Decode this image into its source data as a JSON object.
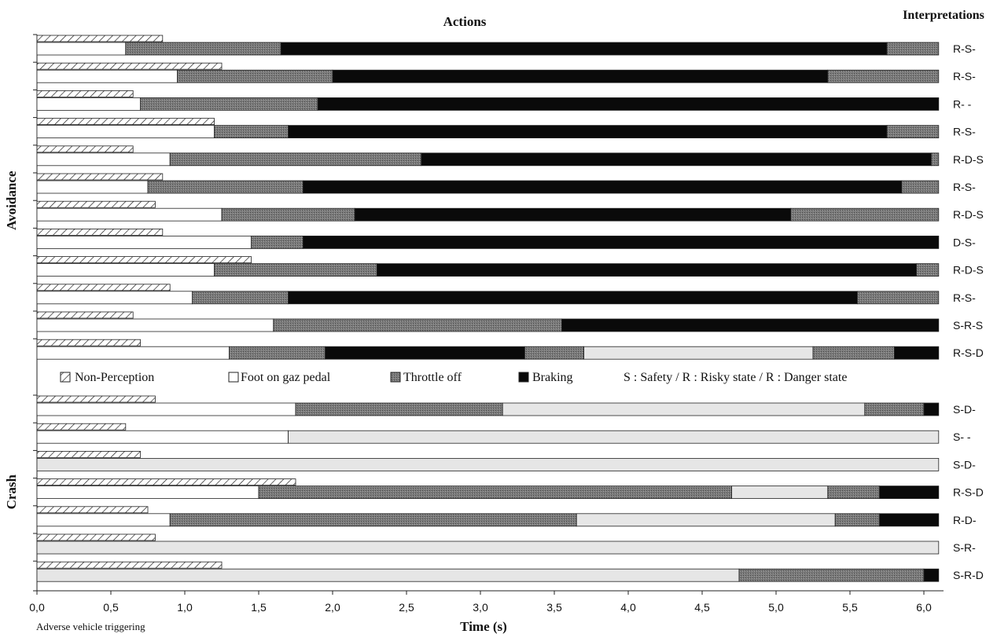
{
  "chart_data": {
    "type": "bar",
    "subtype": "stacked-horizontal-timeline",
    "title": "Actions",
    "right_header": "Interpretations",
    "xlabel": "Time (s)",
    "x_origin_label": "Adverse vehicle triggering",
    "xlim": [
      0,
      6.1
    ],
    "x_ticks": [
      "0,0",
      "0,5",
      "1,0",
      "1,5",
      "2,0",
      "2,5",
      "3,0",
      "3,5",
      "4,0",
      "4,5",
      "5,0",
      "5,5",
      "6,0"
    ],
    "grid": false,
    "legend_placement": "between groups",
    "legend": [
      {
        "key": "nonperception",
        "label": "Non-Perception"
      },
      {
        "key": "gaz",
        "label": "Foot on gaz pedal"
      },
      {
        "key": "throttle",
        "label": "Throttle off"
      },
      {
        "key": "braking",
        "label": "Braking"
      },
      {
        "key": "states",
        "label": "S : Safety / R : Risky state / R : Danger state"
      }
    ],
    "colors": {
      "nonperception": "#ffffff",
      "gaz": "#ffffff",
      "throttle": "#7a7a7a",
      "braking": "#0a0a0a",
      "release": "#e6e6e6",
      "outline": "#222222"
    },
    "groups": [
      {
        "label": "Avoidance",
        "rows": [
          {
            "interp": "R-S-",
            "nonperception": 0.85,
            "segments": [
              [
                "gaz",
                0,
                0.6
              ],
              [
                "throttle",
                0.6,
                1.65
              ],
              [
                "braking",
                1.65,
                5.75
              ],
              [
                "throttle",
                5.75,
                6.1
              ]
            ]
          },
          {
            "interp": "R-S-",
            "nonperception": 1.25,
            "segments": [
              [
                "gaz",
                0,
                0.95
              ],
              [
                "throttle",
                0.95,
                2.0
              ],
              [
                "braking",
                2.0,
                5.35
              ],
              [
                "throttle",
                5.35,
                6.1
              ]
            ]
          },
          {
            "interp": "R- -",
            "nonperception": 0.65,
            "segments": [
              [
                "gaz",
                0,
                0.7
              ],
              [
                "throttle",
                0.7,
                1.9
              ],
              [
                "braking",
                1.9,
                6.1
              ]
            ]
          },
          {
            "interp": "R-S-",
            "nonperception": 1.2,
            "segments": [
              [
                "gaz",
                0,
                1.2
              ],
              [
                "throttle",
                1.2,
                1.7
              ],
              [
                "braking",
                1.7,
                5.75
              ],
              [
                "throttle",
                5.75,
                6.1
              ]
            ]
          },
          {
            "interp": "R-D-S",
            "nonperception": 0.65,
            "segments": [
              [
                "gaz",
                0,
                0.9
              ],
              [
                "throttle",
                0.9,
                2.6
              ],
              [
                "braking",
                2.6,
                6.05
              ],
              [
                "throttle",
                6.05,
                6.1
              ]
            ]
          },
          {
            "interp": "R-S-",
            "nonperception": 0.85,
            "segments": [
              [
                "gaz",
                0,
                0.75
              ],
              [
                "throttle",
                0.75,
                1.8
              ],
              [
                "braking",
                1.8,
                5.85
              ],
              [
                "throttle",
                5.85,
                6.1
              ]
            ]
          },
          {
            "interp": "R-D-S",
            "nonperception": 0.8,
            "segments": [
              [
                "gaz",
                0,
                1.25
              ],
              [
                "throttle",
                1.25,
                2.15
              ],
              [
                "braking",
                2.15,
                5.1
              ],
              [
                "throttle",
                5.1,
                6.1
              ]
            ]
          },
          {
            "interp": "D-S-",
            "nonperception": 0.85,
            "segments": [
              [
                "gaz",
                0,
                1.45
              ],
              [
                "throttle",
                1.45,
                1.8
              ],
              [
                "braking",
                1.8,
                6.1
              ]
            ]
          },
          {
            "interp": "R-D-S",
            "nonperception": 1.45,
            "segments": [
              [
                "gaz",
                0,
                1.2
              ],
              [
                "throttle",
                1.2,
                2.3
              ],
              [
                "braking",
                2.3,
                5.95
              ],
              [
                "throttle",
                5.95,
                6.1
              ]
            ]
          },
          {
            "interp": "R-S-",
            "nonperception": 0.9,
            "segments": [
              [
                "gaz",
                0,
                1.05
              ],
              [
                "throttle",
                1.05,
                1.7
              ],
              [
                "braking",
                1.7,
                5.55
              ],
              [
                "throttle",
                5.55,
                6.1
              ]
            ]
          },
          {
            "interp": "S-R-S",
            "nonperception": 0.65,
            "segments": [
              [
                "gaz",
                0,
                1.6
              ],
              [
                "throttle",
                1.6,
                3.55
              ],
              [
                "braking",
                3.55,
                6.1
              ]
            ]
          },
          {
            "interp": "R-S-D",
            "nonperception": 0.7,
            "segments": [
              [
                "gaz",
                0,
                1.3
              ],
              [
                "throttle",
                1.3,
                1.95
              ],
              [
                "braking",
                1.95,
                3.3
              ],
              [
                "throttle",
                3.3,
                3.7
              ],
              [
                "release",
                3.7,
                5.25
              ],
              [
                "throttle",
                5.25,
                5.8
              ],
              [
                "braking",
                5.8,
                6.1
              ]
            ]
          }
        ]
      },
      {
        "label": "Crash",
        "rows": [
          {
            "interp": "S-D-",
            "nonperception": 0.8,
            "segments": [
              [
                "gaz",
                0,
                1.75
              ],
              [
                "throttle",
                1.75,
                3.15
              ],
              [
                "release",
                3.15,
                5.6
              ],
              [
                "throttle",
                5.6,
                6.0
              ],
              [
                "braking",
                6.0,
                6.1
              ]
            ]
          },
          {
            "interp": "S- -",
            "nonperception": 0.6,
            "segments": [
              [
                "gaz",
                0,
                1.7
              ],
              [
                "release",
                1.7,
                6.1
              ]
            ]
          },
          {
            "interp": "S-D-",
            "nonperception": 0.7,
            "segments": [
              [
                "release",
                0,
                6.1
              ]
            ]
          },
          {
            "interp": "R-S-D",
            "nonperception": 1.75,
            "segments": [
              [
                "gaz",
                0,
                1.5
              ],
              [
                "throttle",
                1.5,
                4.7
              ],
              [
                "release",
                4.7,
                5.35
              ],
              [
                "throttle",
                5.35,
                5.7
              ],
              [
                "braking",
                5.7,
                6.1
              ]
            ]
          },
          {
            "interp": "R-D-",
            "nonperception": 0.75,
            "segments": [
              [
                "gaz",
                0,
                0.9
              ],
              [
                "throttle",
                0.9,
                3.65
              ],
              [
                "release",
                3.65,
                5.4
              ],
              [
                "throttle",
                5.4,
                5.7
              ],
              [
                "braking",
                5.7,
                6.1
              ]
            ]
          },
          {
            "interp": "S-R-",
            "nonperception": 0.8,
            "segments": [
              [
                "release",
                0,
                6.1
              ]
            ]
          },
          {
            "interp": "S-R-D",
            "nonperception": 1.25,
            "segments": [
              [
                "release",
                0,
                4.75
              ],
              [
                "throttle",
                4.75,
                6.0
              ],
              [
                "braking",
                6.0,
                6.1
              ]
            ]
          }
        ]
      }
    ]
  }
}
